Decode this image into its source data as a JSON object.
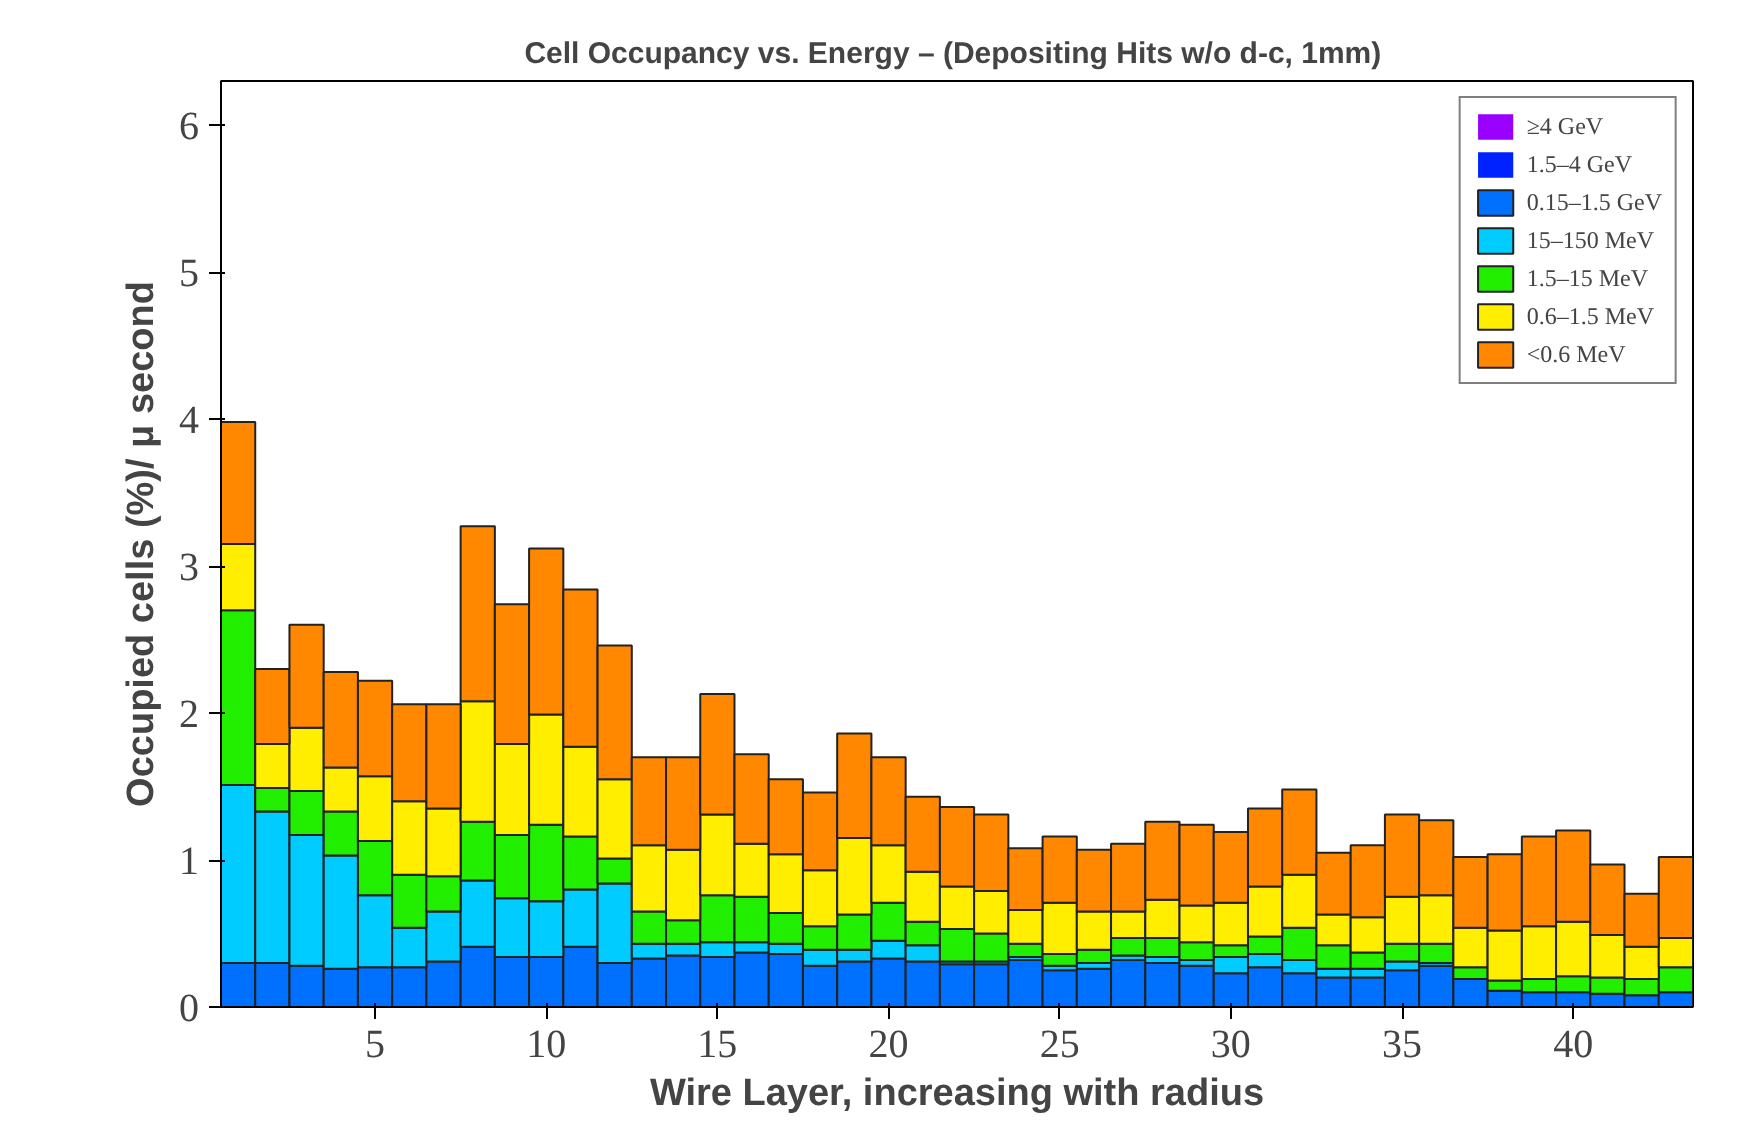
{
  "chart_data": {
    "type": "bar",
    "stacked": true,
    "title": "Cell Occupancy vs. Energy –  (Depositing Hits w/o d-c, 1mm)",
    "xlabel": "Wire Layer, increasing with radius",
    "ylabel": "Occupied cells (%)/ μ second",
    "x": [
      1,
      2,
      3,
      4,
      5,
      6,
      7,
      8,
      9,
      10,
      11,
      12,
      13,
      14,
      15,
      16,
      17,
      18,
      19,
      20,
      21,
      22,
      23,
      24,
      25,
      26,
      27,
      28,
      29,
      30,
      31,
      32,
      33,
      34,
      35,
      36,
      37,
      38,
      39,
      40,
      41,
      42,
      43
    ],
    "xlim": [
      0.5,
      43.5
    ],
    "xticks": [
      5,
      10,
      15,
      20,
      25,
      30,
      35,
      40
    ],
    "ylim": [
      0,
      6.3
    ],
    "yticks": [
      0,
      1,
      2,
      3,
      4,
      5,
      6
    ],
    "grid": false,
    "legend": "top right",
    "series": [
      {
        "name": "≥4 GeV",
        "color": "#9900ff",
        "values": [
          0,
          0,
          0,
          0,
          0,
          0,
          0,
          0,
          0,
          0,
          0,
          0,
          0,
          0,
          0,
          0,
          0,
          0,
          0,
          0,
          0,
          0,
          0,
          0,
          0,
          0,
          0,
          0,
          0,
          0,
          0,
          0,
          0,
          0,
          0,
          0,
          0,
          0,
          0,
          0,
          0,
          0,
          0
        ]
      },
      {
        "name": "1.5–4 GeV",
        "color": "#0022ff",
        "values": [
          0,
          0,
          0,
          0,
          0,
          0,
          0,
          0,
          0,
          0,
          0,
          0,
          0,
          0,
          0,
          0,
          0,
          0,
          0,
          0,
          0,
          0,
          0,
          0,
          0,
          0,
          0,
          0,
          0,
          0,
          0,
          0,
          0,
          0,
          0,
          0,
          0,
          0,
          0,
          0,
          0,
          0,
          0
        ]
      },
      {
        "name": "0.15–1.5 GeV",
        "color": "#0070ff",
        "values": [
          0.3,
          0.3,
          0.28,
          0.26,
          0.27,
          0.27,
          0.31,
          0.41,
          0.34,
          0.34,
          0.41,
          0.3,
          0.33,
          0.35,
          0.34,
          0.37,
          0.36,
          0.28,
          0.31,
          0.33,
          0.31,
          0.29,
          0.29,
          0.32,
          0.25,
          0.26,
          0.32,
          0.3,
          0.28,
          0.23,
          0.27,
          0.23,
          0.2,
          0.2,
          0.25,
          0.28,
          0.19,
          0.11,
          0.1,
          0.1,
          0.09,
          0.08,
          0.1
        ]
      },
      {
        "name": "15–150 MeV",
        "color": "#00ccff",
        "values": [
          1.21,
          1.03,
          0.89,
          0.77,
          0.49,
          0.27,
          0.34,
          0.45,
          0.4,
          0.38,
          0.39,
          0.54,
          0.1,
          0.08,
          0.1,
          0.07,
          0.07,
          0.11,
          0.08,
          0.12,
          0.11,
          0.02,
          0.02,
          0.02,
          0.03,
          0.04,
          0.03,
          0.04,
          0.04,
          0.11,
          0.09,
          0.09,
          0.06,
          0.06,
          0.06,
          0.02,
          0,
          0,
          0,
          0,
          0,
          0,
          0
        ]
      },
      {
        "name": "1.5–15 MeV",
        "color": "#22ee00",
        "values": [
          1.19,
          0.16,
          0.3,
          0.3,
          0.37,
          0.36,
          0.24,
          0.4,
          0.43,
          0.52,
          0.36,
          0.17,
          0.22,
          0.16,
          0.32,
          0.31,
          0.21,
          0.16,
          0.24,
          0.26,
          0.16,
          0.22,
          0.19,
          0.09,
          0.08,
          0.09,
          0.12,
          0.13,
          0.12,
          0.08,
          0.12,
          0.22,
          0.16,
          0.11,
          0.12,
          0.13,
          0.08,
          0.07,
          0.09,
          0.11,
          0.11,
          0.11,
          0.17
        ]
      },
      {
        "name": "0.6–1.5 MeV",
        "color": "#ffee00",
        "values": [
          0.45,
          0.3,
          0.43,
          0.3,
          0.44,
          0.5,
          0.46,
          0.82,
          0.62,
          0.75,
          0.61,
          0.54,
          0.45,
          0.48,
          0.55,
          0.36,
          0.4,
          0.38,
          0.52,
          0.39,
          0.34,
          0.29,
          0.29,
          0.23,
          0.35,
          0.26,
          0.18,
          0.26,
          0.25,
          0.29,
          0.34,
          0.36,
          0.21,
          0.24,
          0.32,
          0.33,
          0.27,
          0.34,
          0.36,
          0.37,
          0.29,
          0.22,
          0.2
        ]
      },
      {
        "name": "<0.6 MeV",
        "color": "#ff8800",
        "values": [
          0.83,
          0.51,
          0.7,
          0.65,
          0.65,
          0.66,
          0.71,
          1.19,
          0.95,
          1.13,
          1.07,
          0.91,
          0.6,
          0.63,
          0.82,
          0.61,
          0.51,
          0.53,
          0.71,
          0.6,
          0.51,
          0.54,
          0.52,
          0.42,
          0.45,
          0.42,
          0.46,
          0.53,
          0.55,
          0.48,
          0.53,
          0.58,
          0.42,
          0.49,
          0.56,
          0.51,
          0.48,
          0.52,
          0.61,
          0.62,
          0.48,
          0.36,
          0.55
        ]
      }
    ]
  }
}
